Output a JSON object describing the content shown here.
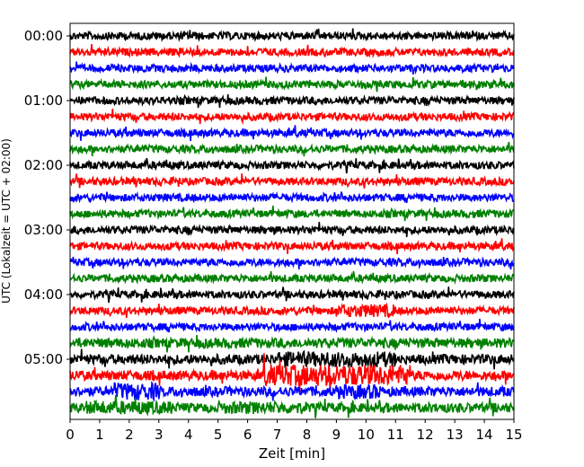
{
  "chart_data": {
    "type": "line",
    "title": "",
    "xlabel": "Zeit  [min]",
    "ylabel": "UTC (Lokalzeit = UTC + 02:00)",
    "xlim": [
      0,
      15
    ],
    "x_ticks": [
      "0",
      "1",
      "2",
      "3",
      "4",
      "5",
      "6",
      "7",
      "8",
      "9",
      "10",
      "11",
      "12",
      "13",
      "14",
      "15"
    ],
    "y_ticks": [
      "00:00",
      "01:00",
      "02:00",
      "03:00",
      "04:00",
      "05:00"
    ],
    "trace_interval_min": 15,
    "trace_count": 24,
    "trace_colors": [
      "#000000",
      "#ff0000",
      "#0000ff",
      "#008000"
    ],
    "grid": false,
    "legend": "none"
  }
}
